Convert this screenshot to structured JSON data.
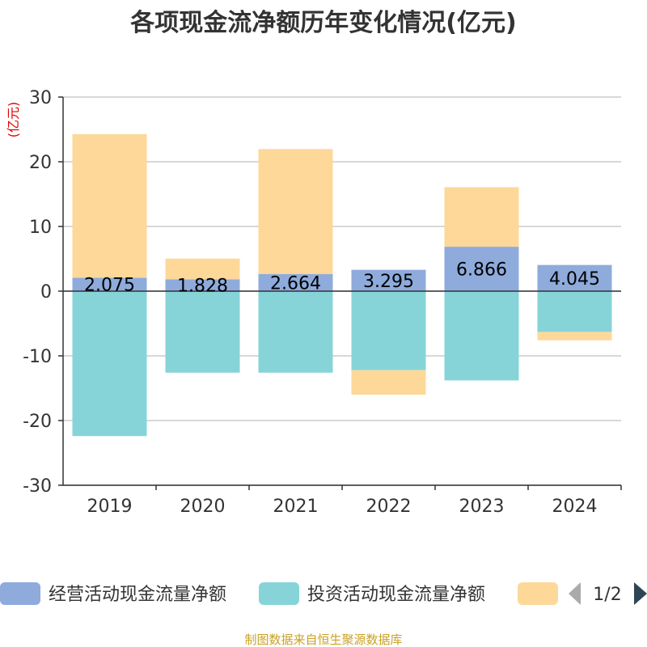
{
  "chart_data": {
    "type": "bar",
    "stacked": true,
    "title": "各项现金流净额历年变化情况(亿元)",
    "ylabel": "(亿元)",
    "xlabel": "",
    "ylim": [
      -30,
      30
    ],
    "yticks": [
      30,
      20,
      10,
      0,
      -10,
      -20,
      -30
    ],
    "categories": [
      "2019",
      "2020",
      "2021",
      "2022",
      "2023",
      "2024"
    ],
    "series": [
      {
        "name": "经营活动现金流量净额",
        "color": "#8eabdc",
        "values": [
          2.075,
          1.828,
          2.664,
          3.295,
          6.866,
          4.045
        ],
        "labels": [
          "2.075",
          "1.828",
          "2.664",
          "3.295",
          "6.866",
          "4.045"
        ]
      },
      {
        "name": "投资活动现金流量净额",
        "color": "#86d4d8",
        "values": [
          -22.4,
          -12.6,
          -12.6,
          -12.2,
          -13.8,
          -6.3
        ]
      },
      {
        "name": "",
        "color": "#fdd899",
        "values": [
          22.2,
          3.2,
          19.3,
          -3.8,
          9.2,
          -1.3
        ]
      }
    ],
    "legend": {
      "position": "bottom",
      "page": "1/2",
      "prev_icon": "triangle-left-icon",
      "next_icon": "triangle-right-icon"
    },
    "source": "制图数据来自恒生聚源数据库",
    "colors": {
      "axis": "#333333",
      "grid": "#cccccc",
      "unit": "#e00000",
      "source": "#c9a227"
    }
  }
}
